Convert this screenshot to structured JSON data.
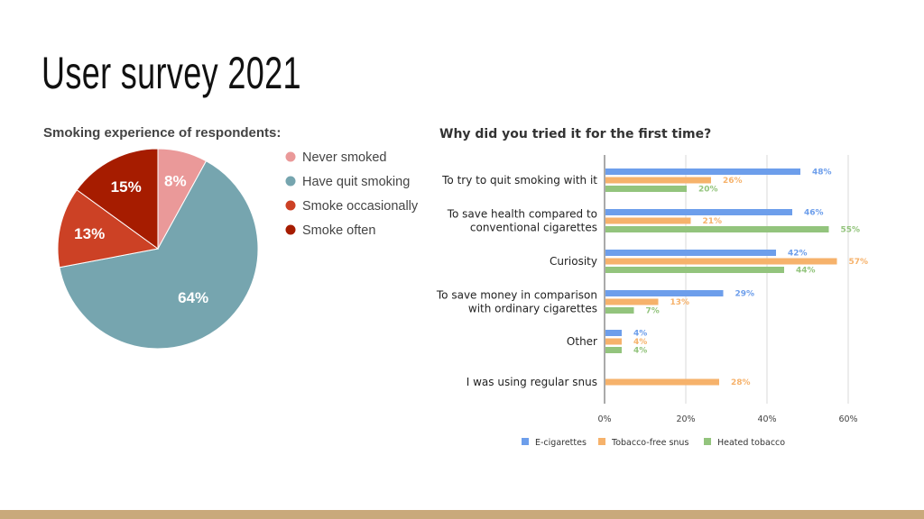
{
  "slide": {
    "title": "User survey 2021",
    "footer_color": "#c9a97b"
  },
  "chart_data": [
    {
      "type": "pie",
      "title": "Smoking experience of respondents:",
      "categories": [
        "Never smoked",
        "Have quit smoking",
        "Smoke occasionally",
        "Smoke often"
      ],
      "values": [
        8,
        64,
        13,
        15
      ],
      "value_labels": [
        "8%",
        "64%",
        "13%",
        "15%"
      ],
      "colors": [
        "#ea9999",
        "#76a5af",
        "#cc4125",
        "#a61c00"
      ],
      "legend_position": "right"
    },
    {
      "type": "bar",
      "orientation": "horizontal",
      "title": "Why did you tried it for the first time?",
      "categories": [
        "To try to quit smoking with it",
        [
          "To save health compared to",
          "conventional cigarettes"
        ],
        "Curiosity",
        [
          "To save money in comparison",
          "with ordinary cigarettes"
        ],
        "Other",
        "I was using regular snus"
      ],
      "series": [
        {
          "name": "E-cigarettes",
          "color": "#6d9eeb",
          "values": [
            48,
            46,
            42,
            29,
            4,
            null
          ]
        },
        {
          "name": "Tobacco-free snus",
          "color": "#f6b26b",
          "values": [
            26,
            21,
            57,
            13,
            4,
            28
          ]
        },
        {
          "name": "Heated tobacco",
          "color": "#93c47d",
          "values": [
            20,
            55,
            44,
            7,
            4,
            null
          ]
        }
      ],
      "xlim": [
        0,
        60
      ],
      "ticks": [
        "0%",
        "20%",
        "40%",
        "60%"
      ],
      "tick_values": [
        0,
        20,
        40,
        60
      ],
      "grid": true,
      "legend_position": "bottom"
    }
  ]
}
